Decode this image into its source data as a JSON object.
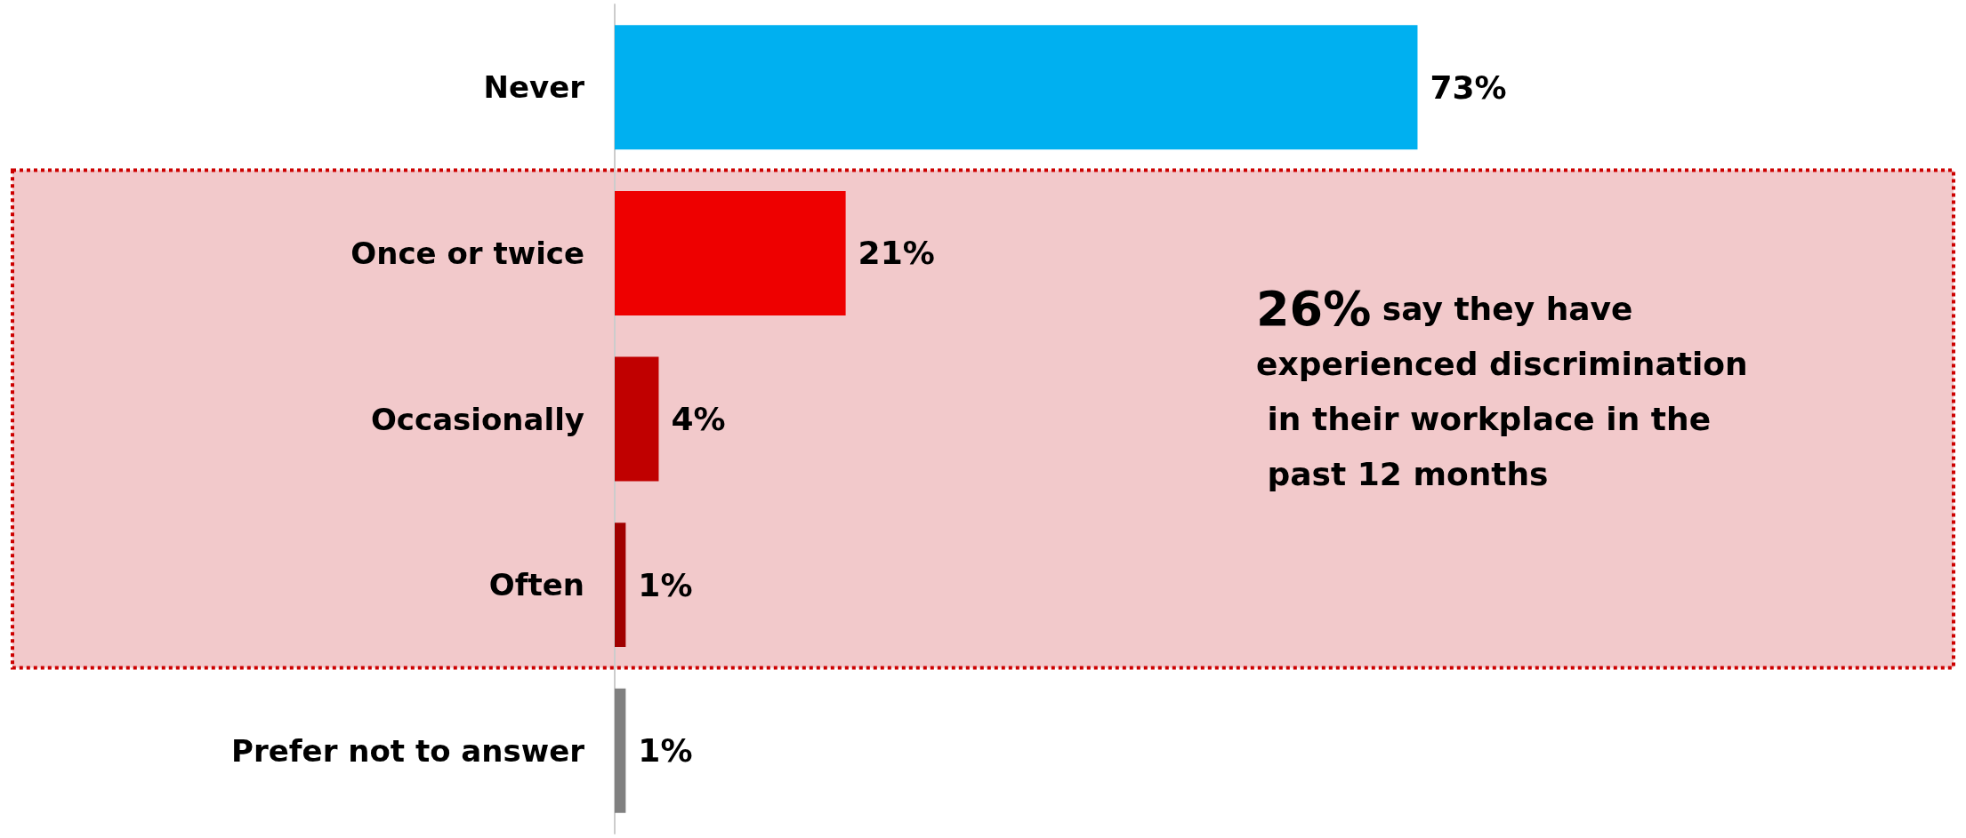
{
  "chart_data": {
    "type": "bar",
    "orientation": "horizontal",
    "categories": [
      "Never",
      "Once or twice",
      "Occasionally",
      "Often",
      "Prefer not to answer"
    ],
    "values": [
      73,
      21,
      4,
      1,
      1
    ],
    "colors": [
      "#00b0f0",
      "#ee0000",
      "#c00000",
      "#a00000",
      "#808080"
    ],
    "value_labels": [
      "73%",
      "21%",
      "4%",
      "1%",
      "1%"
    ],
    "bands": [
      {
        "axis": "y",
        "from": "Once or twice",
        "to": "Often",
        "color": "#f2c9cb"
      }
    ],
    "annotations": [
      "26% say they have experienced discrimination in their workplace in the past 12 months"
    ]
  }
}
